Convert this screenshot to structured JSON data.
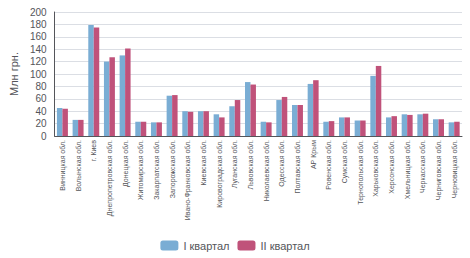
{
  "chart_data": {
    "type": "bar",
    "ylabel": "Млн грн.",
    "categories": [
      "Винницкая обл.",
      "Волынская обл.",
      "г. Киев",
      "Днепропетровская обл.",
      "Донецкая обл.",
      "Житомирская обл.",
      "Закарпатская обл.",
      "Запорожская обл.",
      "Ивано-Франковская обл.",
      "Киевская обл.",
      "Кировоградская обл.",
      "Луганская обл.",
      "Львовская обл.",
      "Николаевская обл.",
      "Одесская обл.",
      "Полтавская обл.",
      "АР Крым",
      "Ровенская обл.",
      "Сумская обл.",
      "Тернопольская обл.",
      "Харьковская обл.",
      "Херсонская обл.",
      "Хмельницкая обл.",
      "Черкасская обл.",
      "Черниговская обл.",
      "Черновицкая обл."
    ],
    "series": [
      {
        "name": "I квартал",
        "color": "#7aadd4",
        "values": [
          45,
          26,
          179,
          120,
          130,
          23,
          22,
          65,
          40,
          40,
          35,
          48,
          87,
          23,
          58,
          50,
          84,
          23,
          30,
          25,
          97,
          30,
          35,
          35,
          27,
          22
        ]
      },
      {
        "name": "II квартал",
        "color": "#c0527a",
        "values": [
          44,
          26,
          175,
          127,
          141,
          23,
          22,
          66,
          39,
          40,
          30,
          58,
          83,
          22,
          63,
          50,
          90,
          24,
          30,
          25,
          113,
          32,
          34,
          36,
          27,
          23
        ]
      }
    ],
    "ylim": [
      0,
      200
    ],
    "yticks": [
      0,
      20,
      40,
      60,
      80,
      100,
      120,
      140,
      160,
      180,
      200
    ],
    "grid": true,
    "legend": "bottom"
  }
}
